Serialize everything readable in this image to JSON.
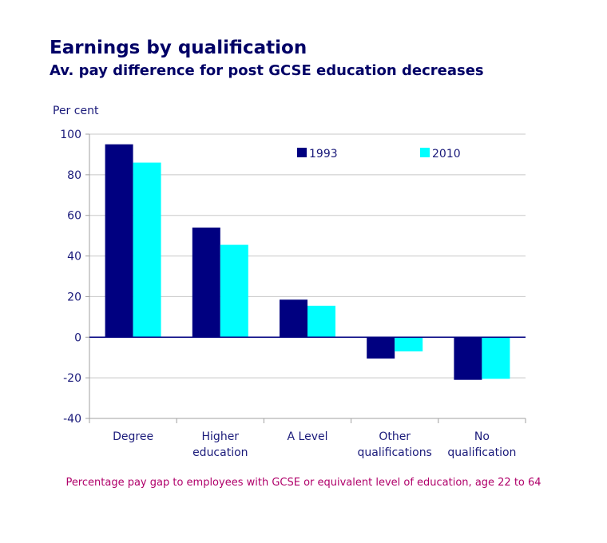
{
  "title": "Earnings by qualification",
  "subtitle": "Av. pay difference for post GCSE education decreases",
  "footnote": "Percentage pay gap to employees with GCSE or equivalent level of education, age 22 to 64",
  "chart_data": {
    "type": "bar",
    "title": "Earnings by qualification",
    "subtitle": "Av. pay difference for post GCSE education decreases",
    "ylabel": "Per cent",
    "xlabel": "",
    "categories": [
      [
        "Degree"
      ],
      [
        "Higher",
        "education"
      ],
      [
        "A Level"
      ],
      [
        "Other",
        "qualifications"
      ],
      [
        "No",
        "qualification"
      ]
    ],
    "series": [
      {
        "name": "1993",
        "color": "#000080",
        "values": [
          95,
          54,
          18.5,
          -10.5,
          -21
        ]
      },
      {
        "name": "2010",
        "color": "#00ffff",
        "values": [
          86,
          45.5,
          15.5,
          -7,
          -20.5
        ]
      }
    ],
    "ylim": [
      -40,
      100
    ],
    "yticks": [
      100,
      80,
      60,
      40,
      20,
      0,
      -20,
      -40
    ],
    "grid": true,
    "legend": "top-right"
  }
}
